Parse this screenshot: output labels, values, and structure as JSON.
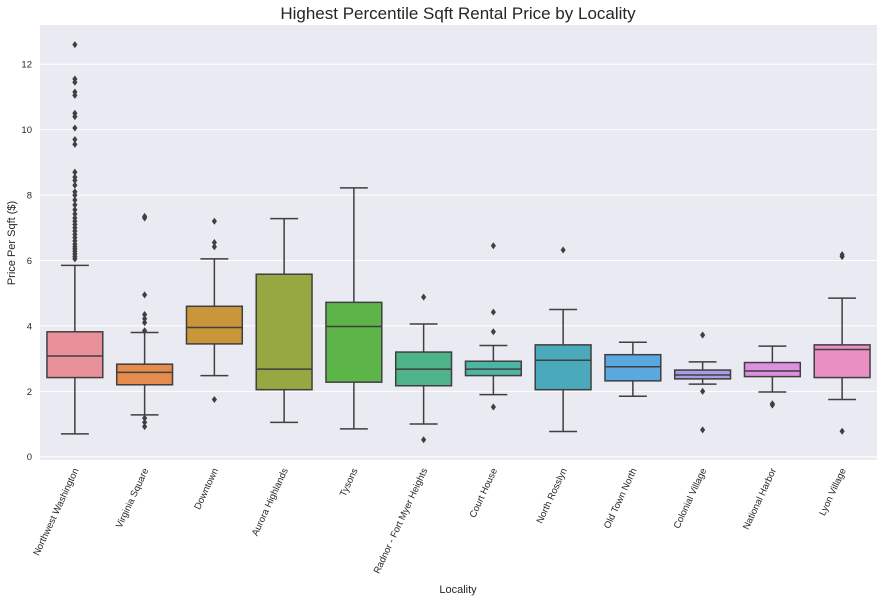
{
  "chart_data": {
    "type": "box",
    "title": "Highest Percentile Sqft Rental Price by Locality",
    "xlabel": "Locality",
    "ylabel": "Price Per Sqft ($)",
    "ylim": [
      -0.1,
      13.2
    ],
    "yticks": [
      "0",
      "2",
      "4",
      "6",
      "8",
      "10",
      "12"
    ],
    "grid": true,
    "categories": [
      "Northwest Washington",
      "Virginia Square",
      "Downtown",
      "Aurora Highlands",
      "Tysons",
      "Radnor - Fort Myer Heights",
      "Court House",
      "North Rosslyn",
      "Old Town North",
      "Colonial Village",
      "National Harbor",
      "Lyon Village"
    ],
    "boxes": [
      {
        "min": 0.7,
        "q1": 2.42,
        "median": 3.08,
        "q3": 3.82,
        "max": 5.85,
        "color": "#e8919a",
        "outliers": [
          6.05,
          6.12,
          6.2,
          6.28,
          6.35,
          6.42,
          6.5,
          6.6,
          6.7,
          6.8,
          6.9,
          7.0,
          7.1,
          7.2,
          7.3,
          7.42,
          7.55,
          7.7,
          7.85,
          8.0,
          8.1,
          8.3,
          8.45,
          8.55,
          8.7,
          9.55,
          9.7,
          10.05,
          10.4,
          10.5,
          11.05,
          11.15,
          11.45,
          11.55,
          12.6
        ]
      },
      {
        "min": 1.28,
        "q1": 2.2,
        "median": 2.58,
        "q3": 2.83,
        "max": 3.8,
        "color": "#e58c4c",
        "outliers": [
          0.92,
          1.05,
          1.18,
          3.85,
          4.1,
          4.22,
          4.35,
          4.95,
          7.3,
          7.35
        ]
      },
      {
        "min": 2.48,
        "q1": 3.45,
        "median": 3.95,
        "q3": 4.6,
        "max": 6.05,
        "color": "#c9973a",
        "outliers": [
          1.75,
          6.42,
          6.55,
          7.2
        ]
      },
      {
        "min": 1.05,
        "q1": 2.05,
        "median": 2.68,
        "q3": 5.58,
        "max": 7.28,
        "color": "#97a843",
        "outliers": []
      },
      {
        "min": 0.85,
        "q1": 2.28,
        "median": 3.98,
        "q3": 4.72,
        "max": 8.22,
        "color": "#5db54a",
        "outliers": []
      },
      {
        "min": 1.0,
        "q1": 2.17,
        "median": 2.68,
        "q3": 3.2,
        "max": 4.06,
        "color": "#4fb38a",
        "outliers": [
          0.52,
          4.88
        ]
      },
      {
        "min": 1.9,
        "q1": 2.48,
        "median": 2.68,
        "q3": 2.92,
        "max": 3.4,
        "color": "#4db3a2",
        "outliers": [
          1.52,
          3.82,
          4.42,
          6.45
        ]
      },
      {
        "min": 0.77,
        "q1": 2.05,
        "median": 2.95,
        "q3": 3.42,
        "max": 4.5,
        "color": "#4aaabb",
        "outliers": [
          6.32
        ]
      },
      {
        "min": 1.85,
        "q1": 2.32,
        "median": 2.75,
        "q3": 3.12,
        "max": 3.5,
        "color": "#5aa8e0",
        "outliers": []
      },
      {
        "min": 2.22,
        "q1": 2.38,
        "median": 2.5,
        "q3": 2.65,
        "max": 2.9,
        "color": "#a79ee6",
        "outliers": [
          0.82,
          2.0,
          3.72
        ]
      },
      {
        "min": 1.98,
        "q1": 2.45,
        "median": 2.62,
        "q3": 2.88,
        "max": 3.38,
        "color": "#df8fe0",
        "outliers": [
          1.58,
          1.62
        ]
      },
      {
        "min": 1.75,
        "q1": 2.42,
        "median": 3.28,
        "q3": 3.42,
        "max": 4.85,
        "color": "#e98fc4",
        "outliers": [
          0.78,
          6.12,
          6.18
        ]
      }
    ]
  }
}
